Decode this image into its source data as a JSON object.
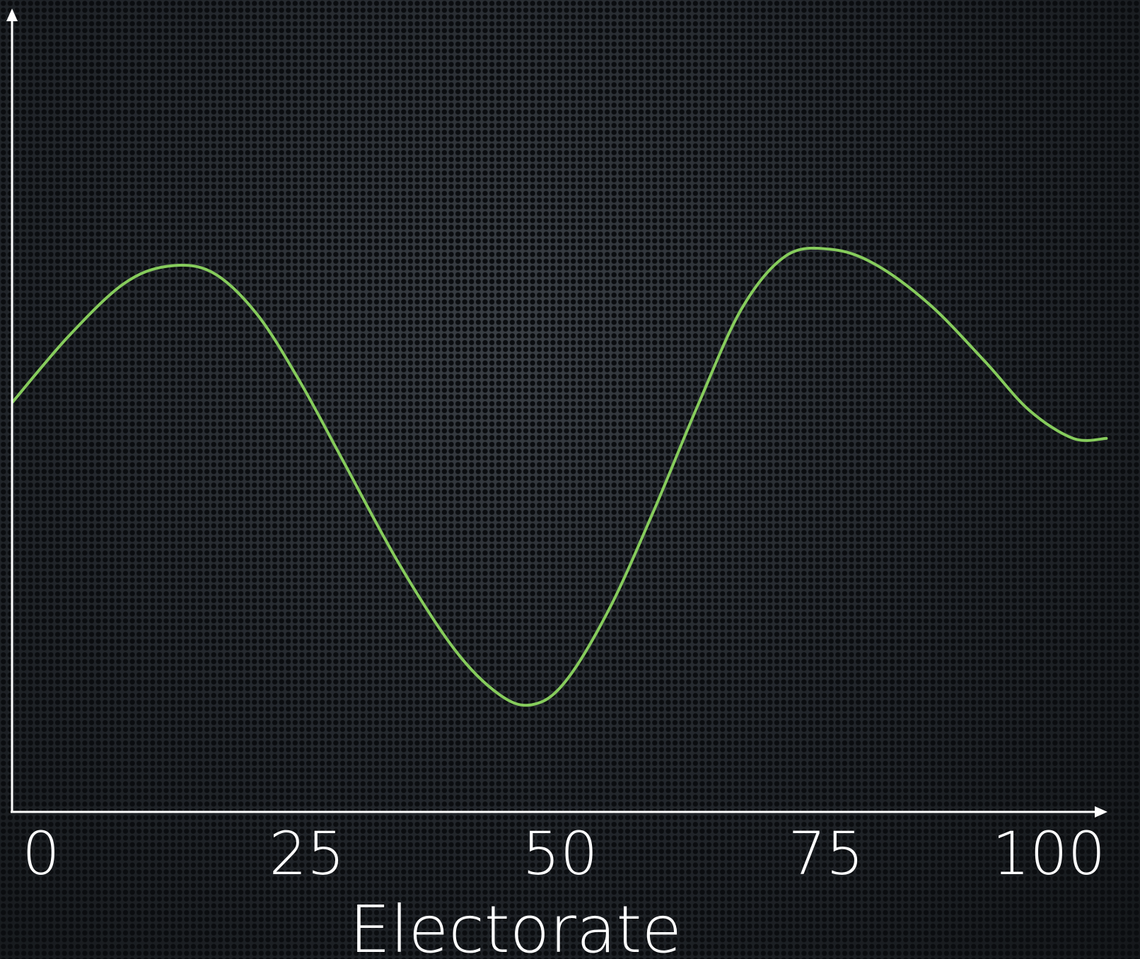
{
  "chart_data": {
    "type": "line",
    "title": "",
    "xlabel": "Electorate",
    "ylabel": "",
    "xlim": [
      0,
      100
    ],
    "ylim": [
      0,
      10
    ],
    "x_ticks": [
      "0",
      "25",
      "50",
      "75",
      "100"
    ],
    "grid": false,
    "legend": "none",
    "series": [
      {
        "color": "#86cc5c",
        "x": [
          0,
          5,
          10,
          14,
          18,
          22,
          26,
          30,
          35,
          40,
          44,
          47,
          50,
          54,
          58,
          62,
          66,
          70,
          74,
          78,
          83,
          88,
          92,
          96,
          99
        ],
        "y": [
          5.05,
          5.85,
          6.5,
          6.72,
          6.65,
          6.15,
          5.3,
          4.3,
          3.05,
          2.0,
          1.45,
          1.32,
          1.6,
          2.5,
          3.7,
          5.0,
          6.2,
          6.85,
          6.93,
          6.75,
          6.25,
          5.55,
          4.95,
          4.6,
          4.6
        ]
      }
    ],
    "colors": {
      "axis": "#ffffff",
      "line": "#86cc5c"
    }
  }
}
